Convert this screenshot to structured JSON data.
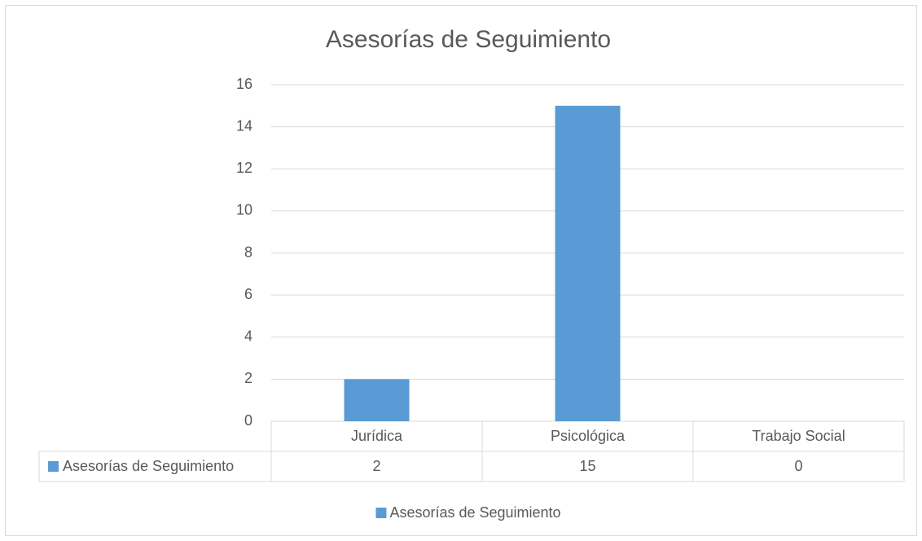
{
  "chart_data": {
    "type": "bar",
    "title": "Asesorías de Seguimiento",
    "categories": [
      "Jurídica",
      "Psicológica",
      "Trabajo Social"
    ],
    "series": [
      {
        "name": "Asesorías de Seguimiento",
        "color": "#5b9bd5",
        "values": [
          2,
          15,
          0
        ]
      }
    ],
    "ylim": [
      0,
      16
    ],
    "yticks": [
      0,
      2,
      4,
      6,
      8,
      10,
      12,
      14,
      16
    ],
    "grid": true,
    "legend": "bottom",
    "data_table": true
  }
}
